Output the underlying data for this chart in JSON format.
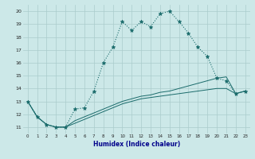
{
  "xlabel": "Humidex (Indice chaleur)",
  "xlim": [
    -0.5,
    23.5
  ],
  "ylim": [
    10.5,
    20.5
  ],
  "yticks": [
    11,
    12,
    13,
    14,
    15,
    16,
    17,
    18,
    19,
    20
  ],
  "xticks": [
    0,
    1,
    2,
    3,
    4,
    5,
    6,
    7,
    8,
    9,
    10,
    11,
    12,
    13,
    14,
    15,
    16,
    17,
    18,
    19,
    20,
    21,
    22,
    23
  ],
  "xtick_labels": [
    "0",
    "1",
    "2",
    "3",
    "4",
    "5",
    "6",
    "7",
    "8",
    "9",
    "10",
    "11",
    "12",
    "13",
    "14",
    "15",
    "16",
    "17",
    "18",
    "19",
    "20",
    "21",
    "22",
    "23"
  ],
  "background_color": "#cce8e8",
  "grid_color": "#aacccc",
  "line_color": "#1a6b6b",
  "line1_x": [
    0,
    1,
    2,
    3,
    4,
    5,
    6,
    7,
    8,
    9,
    10,
    11,
    12,
    13,
    14,
    15,
    16,
    17,
    18,
    19,
    20,
    21,
    22,
    23
  ],
  "line1_y": [
    13.0,
    11.8,
    11.2,
    11.0,
    11.0,
    12.4,
    12.5,
    13.8,
    16.0,
    17.2,
    19.2,
    18.5,
    19.2,
    18.8,
    19.8,
    20.0,
    19.2,
    18.3,
    17.2,
    16.5,
    14.8,
    14.6,
    13.6,
    13.8
  ],
  "line2_x": [
    0,
    1,
    2,
    3,
    4,
    5,
    6,
    7,
    8,
    9,
    10,
    11,
    12,
    13,
    14,
    15,
    16,
    17,
    18,
    19,
    20,
    21,
    22,
    23
  ],
  "line2_y": [
    13.0,
    11.8,
    11.2,
    11.0,
    11.0,
    11.5,
    11.8,
    12.1,
    12.4,
    12.7,
    13.0,
    13.2,
    13.4,
    13.5,
    13.7,
    13.8,
    14.0,
    14.2,
    14.4,
    14.6,
    14.8,
    14.9,
    13.6,
    13.8
  ],
  "line3_x": [
    0,
    1,
    2,
    3,
    4,
    5,
    6,
    7,
    8,
    9,
    10,
    11,
    12,
    13,
    14,
    15,
    16,
    17,
    18,
    19,
    20,
    21,
    22,
    23
  ],
  "line3_y": [
    13.0,
    11.8,
    11.2,
    11.0,
    11.0,
    11.3,
    11.6,
    11.9,
    12.2,
    12.5,
    12.8,
    13.0,
    13.2,
    13.3,
    13.4,
    13.5,
    13.6,
    13.7,
    13.8,
    13.9,
    14.0,
    14.0,
    13.6,
    13.8
  ]
}
